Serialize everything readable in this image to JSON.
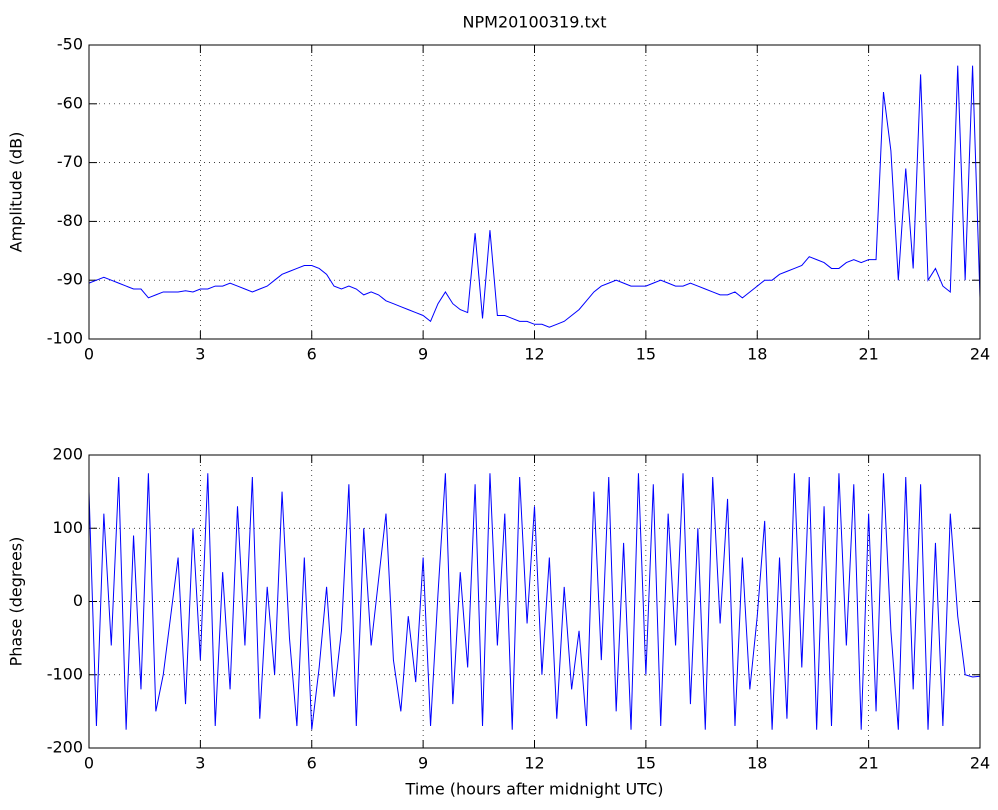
{
  "chart_data": [
    {
      "type": "line",
      "title": "NPM20100319.txt",
      "y_label": "Amplitude (dB)",
      "x": [
        0,
        0.2,
        0.4,
        0.6,
        0.8,
        1,
        1.2,
        1.4,
        1.6,
        1.8,
        2,
        2.2,
        2.4,
        2.6,
        2.8,
        3,
        3.2,
        3.4,
        3.6,
        3.8,
        4,
        4.2,
        4.4,
        4.6,
        4.8,
        5,
        5.2,
        5.4,
        5.6,
        5.8,
        6,
        6.2,
        6.4,
        6.6,
        6.8,
        7,
        7.2,
        7.4,
        7.6,
        7.8,
        8,
        8.2,
        8.4,
        8.6,
        8.8,
        9,
        9.2,
        9.4,
        9.6,
        9.8,
        10,
        10.2,
        10.4,
        10.6,
        10.8,
        11,
        11.2,
        11.4,
        11.6,
        11.8,
        12,
        12.2,
        12.4,
        12.6,
        12.8,
        13,
        13.2,
        13.4,
        13.6,
        13.8,
        14,
        14.2,
        14.4,
        14.6,
        14.8,
        15,
        15.2,
        15.4,
        15.6,
        15.8,
        16,
        16.2,
        16.4,
        16.6,
        16.8,
        17,
        17.2,
        17.4,
        17.6,
        17.8,
        18,
        18.2,
        18.4,
        18.6,
        18.8,
        19,
        19.2,
        19.4,
        19.6,
        19.8,
        20,
        20.2,
        20.4,
        20.6,
        20.8,
        21,
        21.2,
        21.4,
        21.6,
        21.8,
        22,
        22.2,
        22.4,
        22.6,
        22.8,
        23,
        23.2,
        23.4,
        23.6,
        23.8,
        24
      ],
      "series": [
        {
          "color": "#0000ff",
          "values": [
            -90.5,
            -90,
            -89.5,
            -90,
            -90.5,
            -91,
            -91.5,
            -91.5,
            -93,
            -92.5,
            -92,
            -92,
            -92,
            -91.8,
            -92,
            -91.5,
            -91.5,
            -91,
            -91,
            -90.5,
            -91,
            -91.5,
            -92,
            -91.5,
            -91,
            -90,
            -89,
            -88.5,
            -88,
            -87.5,
            -87.5,
            -88,
            -89,
            -91,
            -91.5,
            -91,
            -91.5,
            -92.5,
            -92,
            -92.5,
            -93.5,
            -94,
            -94.5,
            -95,
            -95.5,
            -96,
            -97,
            -94,
            -92,
            -94,
            -95,
            -95.5,
            -82,
            -96.5,
            -81.5,
            -96,
            -96,
            -96.5,
            -97,
            -97,
            -97.5,
            -97.5,
            -98,
            -97.5,
            -97,
            -96,
            -95,
            -93.5,
            -92,
            -91,
            -90.5,
            -90,
            -90.5,
            -91,
            -91,
            -91,
            -90.5,
            -90,
            -90.5,
            -91,
            -91,
            -90.5,
            -91,
            -91.5,
            -92,
            -92.5,
            -92.5,
            -92,
            -93,
            -92,
            -91,
            -90,
            -90,
            -89,
            -88.5,
            -88,
            -87.5,
            -86,
            -86.5,
            -87,
            -88,
            -88,
            -87,
            -86.5,
            -87,
            -86.5,
            -86.5,
            -58,
            -68,
            -90,
            -71,
            -88,
            -55,
            -90,
            -88,
            -91,
            -92,
            -53.5,
            -90,
            -53.5,
            -93
          ]
        }
      ],
      "xlim": [
        0,
        24
      ],
      "xticks": [
        0,
        3,
        6,
        9,
        12,
        15,
        18,
        21,
        24
      ],
      "ylim": [
        -100,
        -50
      ],
      "yticks": [
        -100,
        -90,
        -80,
        -70,
        -60,
        -50
      ],
      "grid": true
    },
    {
      "type": "line",
      "y_label": "Phase (degrees)",
      "x_label": "Time (hours after midnight UTC)",
      "x": [
        0,
        0.2,
        0.4,
        0.6,
        0.8,
        1,
        1.2,
        1.4,
        1.6,
        1.8,
        2,
        2.2,
        2.4,
        2.6,
        2.8,
        3,
        3.2,
        3.4,
        3.6,
        3.8,
        4,
        4.2,
        4.4,
        4.6,
        4.8,
        5,
        5.2,
        5.4,
        5.6,
        5.8,
        6,
        6.2,
        6.4,
        6.6,
        6.8,
        7,
        7.2,
        7.4,
        7.6,
        7.8,
        8,
        8.2,
        8.4,
        8.6,
        8.8,
        9,
        9.2,
        9.4,
        9.6,
        9.8,
        10,
        10.2,
        10.4,
        10.6,
        10.8,
        11,
        11.2,
        11.4,
        11.6,
        11.8,
        12,
        12.2,
        12.4,
        12.6,
        12.8,
        13,
        13.2,
        13.4,
        13.6,
        13.8,
        14,
        14.2,
        14.4,
        14.6,
        14.8,
        15,
        15.2,
        15.4,
        15.6,
        15.8,
        16,
        16.2,
        16.4,
        16.6,
        16.8,
        17,
        17.2,
        17.4,
        17.6,
        17.8,
        18,
        18.2,
        18.4,
        18.6,
        18.8,
        19,
        19.2,
        19.4,
        19.6,
        19.8,
        20,
        20.2,
        20.4,
        20.6,
        20.8,
        21,
        21.2,
        21.4,
        21.6,
        21.8,
        22,
        22.2,
        22.4,
        22.6,
        22.8,
        23,
        23.2,
        23.4,
        23.6,
        23.8,
        24
      ],
      "series": [
        {
          "color": "#0000ff",
          "values": [
            150,
            -170,
            120,
            -60,
            170,
            -175,
            90,
            -120,
            175,
            -150,
            -100,
            -20,
            60,
            -140,
            100,
            -80,
            175,
            -170,
            40,
            -120,
            130,
            -60,
            170,
            -160,
            20,
            -100,
            150,
            -50,
            -170,
            60,
            -175,
            -90,
            20,
            -130,
            -40,
            160,
            -170,
            100,
            -60,
            30,
            120,
            -80,
            -150,
            -20,
            -110,
            60,
            -170,
            10,
            175,
            -140,
            40,
            -90,
            160,
            -170,
            175,
            -60,
            120,
            -175,
            170,
            -30,
            130,
            -100,
            60,
            -160,
            20,
            -120,
            -40,
            -170,
            150,
            -80,
            170,
            -150,
            80,
            -175,
            175,
            -100,
            160,
            -170,
            120,
            -60,
            175,
            -140,
            100,
            -175,
            170,
            -30,
            140,
            -170,
            60,
            -120,
            -20,
            110,
            -175,
            60,
            -160,
            175,
            -90,
            170,
            -175,
            130,
            -170,
            175,
            -60,
            160,
            -175,
            120,
            -150,
            175,
            -40,
            -175,
            170,
            -120,
            160,
            -175,
            80,
            -170,
            120,
            -20,
            -100,
            -103,
            -102
          ]
        }
      ],
      "xlim": [
        0,
        24
      ],
      "xticks": [
        0,
        3,
        6,
        9,
        12,
        15,
        18,
        21,
        24
      ],
      "ylim": [
        -200,
        200
      ],
      "yticks": [
        -200,
        -100,
        0,
        100,
        200
      ],
      "grid": true
    }
  ]
}
